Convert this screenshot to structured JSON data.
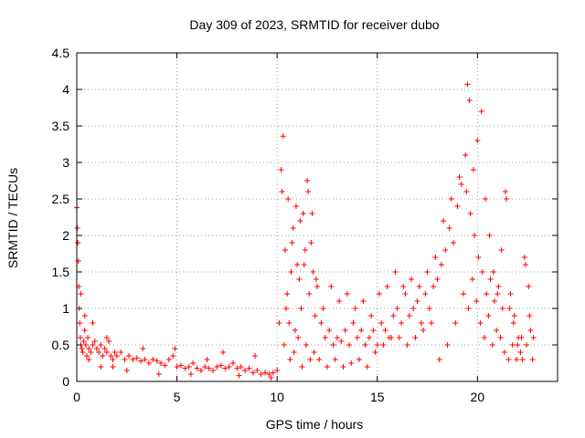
{
  "chart_data": {
    "type": "scatter",
    "title": "Day 309 of 2023, SRMTID for receiver dubo",
    "xlabel": "GPS time / hours",
    "ylabel": "SRMTID / TECUs",
    "xlim": [
      0,
      24
    ],
    "ylim": [
      0,
      4.5
    ],
    "x_ticks": [
      0,
      5,
      10,
      15,
      20
    ],
    "x_tick_labels": [
      "0",
      "5",
      "10",
      "15",
      "20"
    ],
    "y_ticks": [
      0,
      0.5,
      1,
      1.5,
      2,
      2.5,
      3,
      3.5,
      4,
      4.5
    ],
    "y_tick_labels": [
      "0",
      "0.5",
      "1",
      "1.5",
      "2",
      "2.5",
      "3",
      "3.5",
      "4",
      "4.5"
    ],
    "grid": true,
    "marker": "+",
    "marker_color": "#ff0000",
    "series": [
      {
        "name": "SRMTID",
        "x": [
          0.0,
          0.03,
          0.05,
          0.08,
          0.1,
          0.12,
          0.15,
          0.18,
          0.2,
          0.25,
          0.3,
          0.35,
          0.4,
          0.45,
          0.5,
          0.55,
          0.6,
          0.7,
          0.8,
          0.9,
          1.0,
          1.1,
          1.2,
          1.3,
          1.4,
          1.5,
          1.6,
          1.7,
          1.8,
          1.9,
          2.0,
          2.2,
          2.4,
          2.6,
          2.8,
          3.0,
          3.2,
          3.4,
          3.6,
          3.8,
          4.0,
          4.2,
          4.4,
          4.6,
          4.8,
          5.0,
          5.2,
          5.4,
          5.6,
          5.8,
          6.0,
          6.2,
          6.4,
          6.6,
          6.8,
          7.0,
          7.2,
          7.4,
          7.6,
          7.8,
          8.0,
          8.2,
          8.4,
          8.6,
          8.8,
          9.0,
          9.2,
          9.4,
          9.6,
          9.8,
          10.0,
          10.1,
          10.2,
          10.3,
          10.4,
          10.5,
          10.6,
          10.7,
          10.8,
          10.9,
          11.0,
          11.1,
          11.2,
          11.3,
          11.4,
          11.5,
          11.6,
          11.7,
          11.8,
          11.9,
          12.0,
          12.2,
          12.4,
          12.6,
          12.8,
          13.0,
          13.2,
          13.4,
          13.6,
          13.8,
          14.0,
          14.2,
          14.4,
          14.6,
          14.8,
          15.0,
          15.2,
          15.4,
          15.6,
          15.8,
          16.0,
          16.2,
          16.4,
          16.6,
          16.8,
          17.0,
          17.2,
          17.4,
          17.6,
          17.8,
          18.0,
          18.2,
          18.4,
          18.6,
          18.8,
          19.0,
          19.2,
          19.4,
          19.5,
          19.6,
          19.8,
          20.0,
          20.2,
          20.4,
          20.6,
          20.8,
          21.0,
          21.2,
          21.4,
          21.6,
          21.8,
          22.0,
          22.2,
          22.4,
          22.6,
          22.8
        ],
        "y": [
          2.38,
          2.1,
          1.9,
          1.65,
          1.3,
          1.0,
          0.8,
          0.6,
          0.5,
          0.45,
          0.4,
          0.55,
          0.7,
          0.5,
          0.35,
          0.6,
          0.45,
          0.4,
          0.5,
          0.55,
          0.45,
          0.4,
          0.5,
          0.35,
          0.45,
          0.4,
          0.55,
          0.35,
          0.3,
          0.4,
          0.35,
          0.4,
          0.3,
          0.35,
          0.3,
          0.32,
          0.28,
          0.3,
          0.25,
          0.3,
          0.28,
          0.25,
          0.22,
          0.3,
          0.35,
          0.2,
          0.22,
          0.18,
          0.2,
          0.25,
          0.18,
          0.15,
          0.2,
          0.18,
          0.15,
          0.2,
          0.22,
          0.18,
          0.2,
          0.25,
          0.18,
          0.2,
          0.15,
          0.18,
          0.12,
          0.15,
          0.1,
          0.12,
          0.1,
          0.12,
          0.15,
          0.8,
          2.9,
          3.36,
          1.8,
          1.2,
          0.8,
          1.5,
          2.1,
          0.7,
          1.6,
          1.4,
          1.0,
          2.3,
          1.8,
          2.75,
          1.2,
          1.9,
          1.5,
          0.9,
          1.3,
          0.8,
          0.6,
          0.7,
          0.5,
          0.6,
          0.55,
          0.7,
          0.5,
          0.8,
          0.6,
          0.7,
          0.5,
          0.6,
          0.7,
          0.5,
          0.8,
          0.7,
          0.6,
          0.9,
          1.0,
          0.8,
          1.2,
          0.9,
          1.0,
          1.1,
          0.8,
          1.2,
          1.0,
          1.3,
          1.4,
          1.6,
          1.8,
          2.1,
          1.9,
          2.4,
          2.7,
          3.1,
          4.07,
          3.85,
          2.9,
          3.3,
          3.7,
          2.5,
          2.0,
          1.5,
          1.2,
          1.8,
          2.6,
          1.0,
          0.8,
          0.5,
          0.6,
          1.6,
          0.9,
          0.6
        ],
        "extra_points": {
          "x": [
            0.2,
            0.4,
            0.6,
            0.8,
            1.2,
            1.5,
            1.8,
            2.5,
            3.3,
            4.1,
            4.9,
            5.7,
            6.5,
            7.3,
            8.1,
            8.9,
            9.7,
            10.25,
            10.35,
            10.45,
            10.55,
            10.65,
            10.75,
            10.85,
            10.95,
            11.05,
            11.15,
            11.25,
            11.35,
            11.45,
            11.55,
            11.65,
            11.75,
            11.85,
            11.95,
            12.1,
            12.3,
            12.5,
            12.7,
            12.9,
            13.1,
            13.3,
            13.5,
            13.7,
            13.9,
            14.1,
            14.3,
            14.5,
            14.7,
            14.9,
            15.1,
            15.3,
            15.5,
            15.7,
            15.9,
            16.1,
            16.3,
            16.5,
            16.7,
            16.9,
            17.1,
            17.3,
            17.5,
            17.7,
            17.9,
            18.1,
            18.3,
            18.5,
            18.7,
            18.9,
            19.1,
            19.3,
            19.45,
            19.55,
            19.65,
            19.75,
            19.85,
            19.95,
            20.05,
            20.15,
            20.25,
            20.35,
            20.45,
            20.55,
            20.65,
            20.75,
            20.85,
            20.95,
            21.05,
            21.15,
            21.25,
            21.35,
            21.45,
            21.55,
            21.65,
            21.75,
            21.85,
            21.95,
            22.05,
            22.15,
            22.25,
            22.35,
            22.45,
            22.55,
            22.65,
            22.75
          ],
          "y": [
            1.2,
            0.9,
            0.3,
            0.8,
            0.2,
            0.6,
            0.2,
            0.15,
            0.45,
            0.1,
            0.45,
            0.1,
            0.3,
            0.4,
            0.08,
            0.35,
            0.05,
            2.6,
            0.5,
            1.0,
            2.5,
            0.3,
            1.9,
            0.4,
            2.4,
            0.6,
            2.2,
            0.2,
            1.6,
            0.5,
            2.6,
            0.3,
            2.3,
            0.4,
            1.4,
            0.3,
            1.0,
            0.2,
            1.3,
            0.3,
            1.1,
            0.2,
            1.2,
            0.25,
            1.0,
            0.3,
            1.1,
            0.2,
            0.9,
            0.4,
            1.2,
            0.5,
            1.3,
            0.6,
            1.5,
            0.6,
            1.3,
            0.5,
            1.4,
            0.6,
            1.3,
            0.7,
            1.5,
            0.8,
            1.7,
            0.3,
            2.2,
            0.5,
            2.5,
            0.8,
            2.8,
            1.2,
            2.6,
            1.0,
            2.3,
            1.4,
            2.0,
            1.1,
            1.7,
            0.8,
            1.5,
            0.6,
            1.2,
            0.9,
            1.4,
            0.5,
            1.1,
            0.7,
            1.3,
            0.6,
            1.0,
            0.4,
            2.5,
            0.3,
            1.2,
            0.5,
            0.9,
            0.3,
            0.6,
            0.4,
            0.3,
            1.7,
            0.5,
            1.3,
            0.7,
            0.3
          ]
        }
      }
    ]
  }
}
